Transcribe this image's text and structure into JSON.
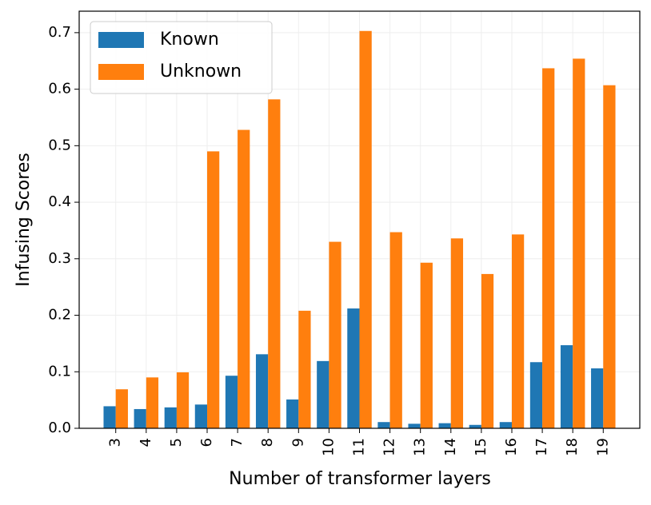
{
  "chart_data": {
    "type": "bar",
    "xlabel": "Number of transformer layers",
    "ylabel": "Infusing Scores",
    "categories": [
      "3",
      "4",
      "5",
      "6",
      "7",
      "8",
      "9",
      "10",
      "11",
      "12",
      "13",
      "14",
      "15",
      "16",
      "17",
      "18",
      "19"
    ],
    "series": [
      {
        "name": "Known",
        "color": "#1f77b4",
        "values": [
          0.039,
          0.034,
          0.037,
          0.042,
          0.093,
          0.131,
          0.051,
          0.119,
          0.212,
          0.011,
          0.008,
          0.009,
          0.006,
          0.011,
          0.117,
          0.147,
          0.106
        ]
      },
      {
        "name": "Unknown",
        "color": "#ff7f0e",
        "values": [
          0.069,
          0.09,
          0.099,
          0.49,
          0.528,
          0.582,
          0.208,
          0.33,
          0.703,
          0.347,
          0.293,
          0.336,
          0.273,
          0.343,
          0.637,
          0.654,
          0.607
        ]
      }
    ],
    "ylim": [
      0,
      0.738
    ],
    "yticks": [
      {
        "value": 0,
        "label": "0.0"
      },
      0.1,
      0.2,
      0.3,
      0.4,
      0.5,
      0.6,
      0.7
    ],
    "grid": true,
    "legend": "upper-left"
  }
}
